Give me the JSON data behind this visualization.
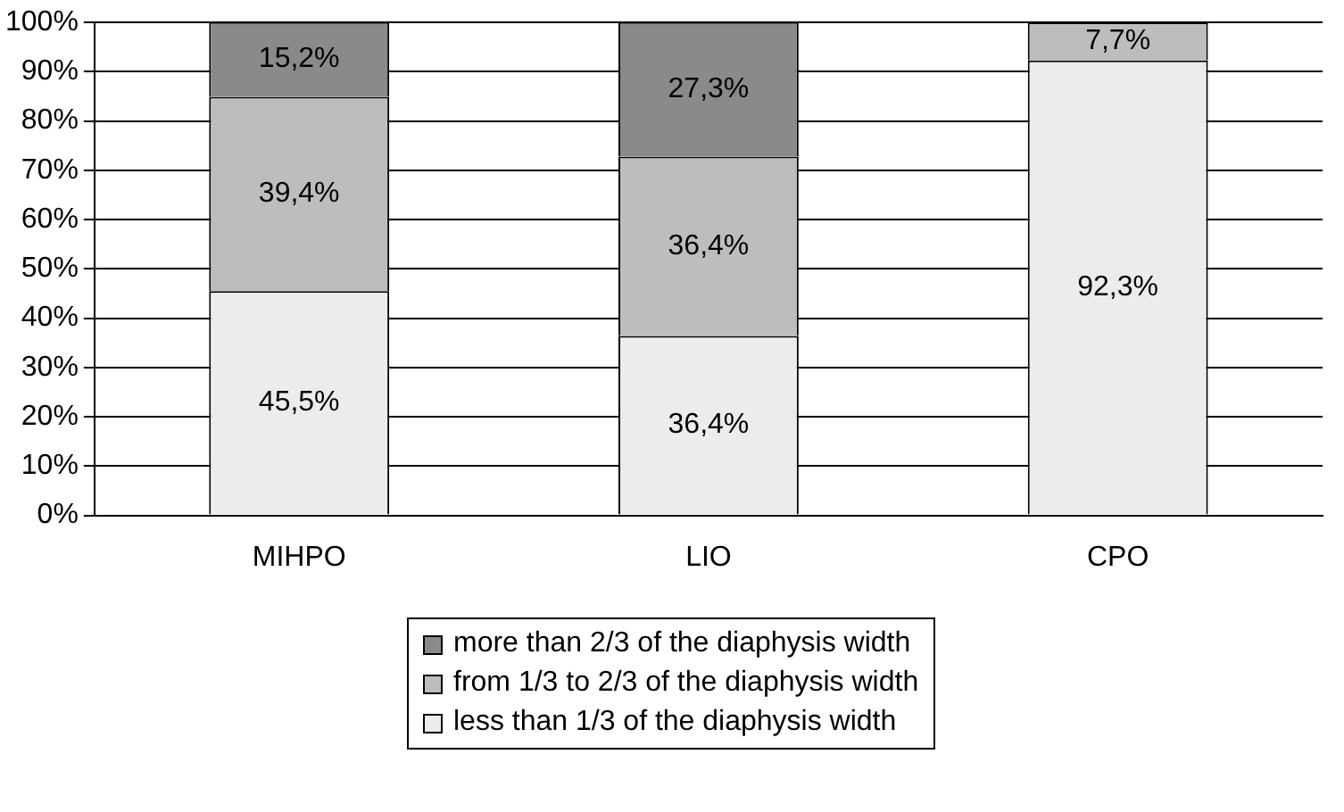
{
  "chart_data": {
    "type": "bar",
    "stacked": true,
    "categories": [
      "MIHPO",
      "LIO",
      "CPO"
    ],
    "series": [
      {
        "name": "less than 1/3 of the diaphysis width",
        "color": "#ececec",
        "values": [
          45.5,
          36.4,
          92.3
        ],
        "value_labels": [
          "45,5%",
          "36,4%",
          "92,3%"
        ]
      },
      {
        "name": "from 1/3 to 2/3 of the diaphysis width",
        "color": "#bdbdbd",
        "values": [
          39.4,
          36.4,
          7.7
        ],
        "value_labels": [
          "39,4%",
          "36,4%",
          "7,7%"
        ]
      },
      {
        "name": "more than 2/3 of the diaphysis width",
        "color": "#8a8a8a",
        "values": [
          15.2,
          27.3,
          null
        ],
        "value_labels": [
          "15,2%",
          "27,3%",
          null
        ]
      }
    ],
    "ylim": [
      0,
      100
    ],
    "yticks": [
      {
        "value": 0,
        "label": "0%"
      },
      {
        "value": 10,
        "label": "10%"
      },
      {
        "value": 20,
        "label": "20%"
      },
      {
        "value": 30,
        "label": "30%"
      },
      {
        "value": 40,
        "label": "40%"
      },
      {
        "value": 50,
        "label": "50%"
      },
      {
        "value": 60,
        "label": "60%"
      },
      {
        "value": 70,
        "label": "70%"
      },
      {
        "value": 80,
        "label": "80%"
      },
      {
        "value": 90,
        "label": "90%"
      },
      {
        "value": 100,
        "label": "100%"
      }
    ],
    "grid": "y",
    "legend": "bottom"
  }
}
